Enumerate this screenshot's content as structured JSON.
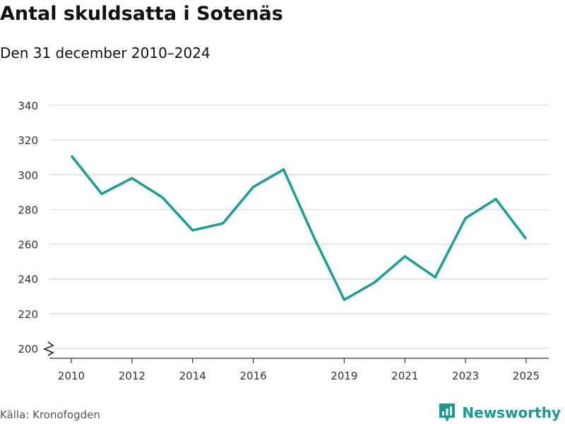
{
  "header": {
    "title": "Antal skuldsatta i Sotenäs",
    "subtitle": "Den 31 december 2010–2024"
  },
  "footer": {
    "source": "Källa: Kronofogden",
    "brand": "Newsworthy"
  },
  "colors": {
    "line": "#17a095",
    "grid": "#d9d9d9",
    "axis": "#333333",
    "brand": "#1a9a8e"
  },
  "chart_data": {
    "type": "line",
    "title": "Antal skuldsatta i Sotenäs",
    "subtitle": "Den 31 december 2010–2024",
    "xlabel": "",
    "ylabel": "",
    "xlim": [
      2010,
      2025
    ],
    "ylim": [
      200,
      340
    ],
    "y_axis_break": true,
    "grid": true,
    "yticks": [
      200,
      220,
      240,
      260,
      280,
      300,
      320,
      340
    ],
    "xticks": [
      2010,
      2012,
      2014,
      2016,
      2019,
      2021,
      2023,
      2025
    ],
    "series": [
      {
        "name": "Antal skuldsatta",
        "x": [
          2010,
          2011,
          2012,
          2013,
          2014,
          2015,
          2016,
          2017,
          2018,
          2019,
          2020,
          2021,
          2022,
          2023,
          2024,
          2025
        ],
        "values": [
          311,
          289,
          298,
          287,
          268,
          272,
          293,
          303,
          264,
          228,
          238,
          253,
          241,
          275,
          286,
          263
        ]
      }
    ]
  }
}
